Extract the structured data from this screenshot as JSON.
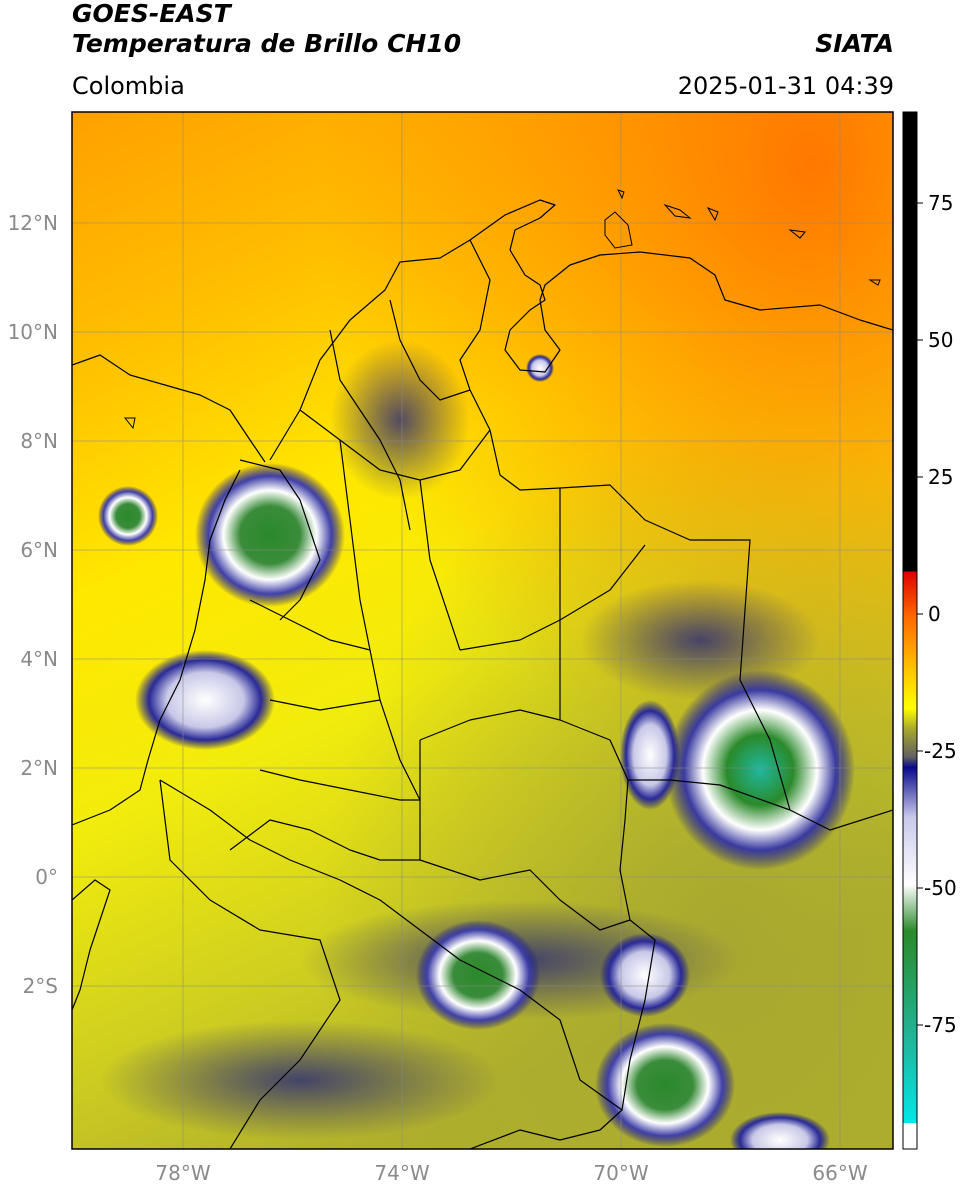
{
  "header": {
    "satellite": "GOES-EAST",
    "product": "Temperatura de Brillo CH10",
    "region": "Colombia",
    "agency": "SIATA",
    "datetime": "2025-01-31 04:39"
  },
  "map": {
    "lat_labels": [
      "12°N",
      "10°N",
      "8°N",
      "6°N",
      "4°N",
      "2°N",
      "0°",
      "2°S"
    ],
    "lon_labels": [
      "78°W",
      "74°W",
      "70°W",
      "66°W"
    ]
  },
  "colorbar": {
    "ticks": [
      "75",
      "50",
      "25",
      "0",
      "-25",
      "-50",
      "-75"
    ],
    "colors": {
      "black": "#000000",
      "red": "#e10000",
      "orange": "#ff8c00",
      "yellow": "#ffff00",
      "olive": "#a8a830",
      "navy": "#0a0a8c",
      "white": "#ffffff",
      "green": "#2a8a2a",
      "cyan": "#00dcdc"
    }
  }
}
